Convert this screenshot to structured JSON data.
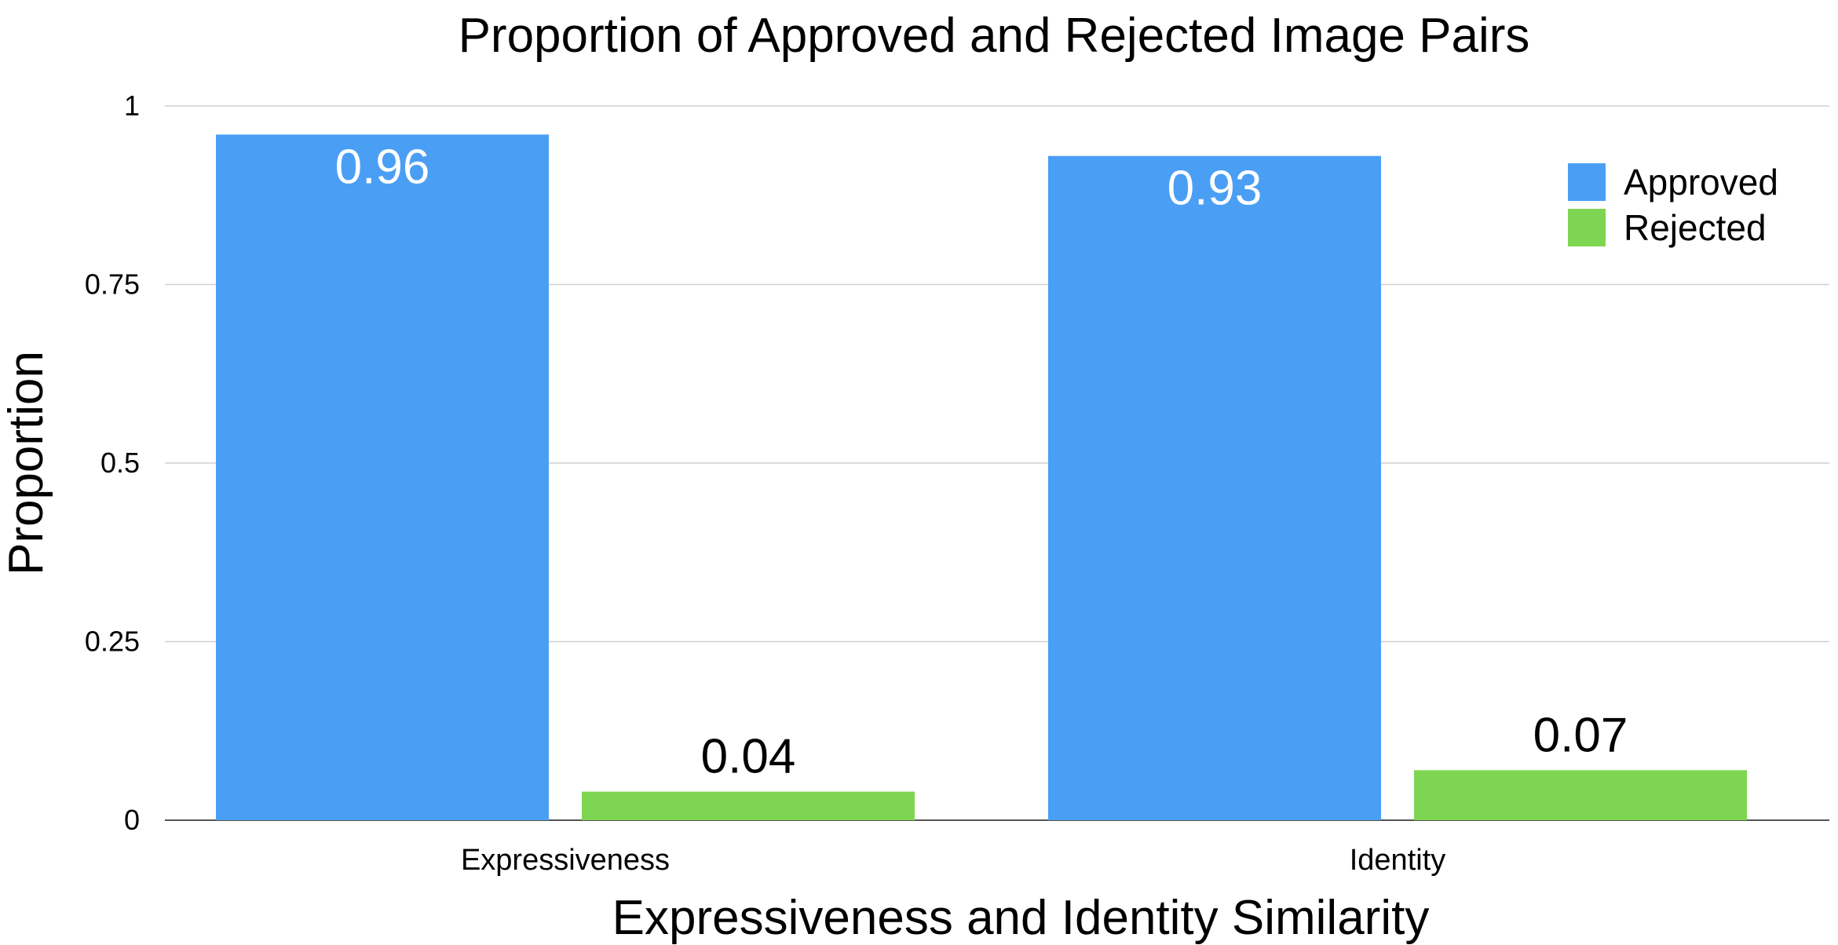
{
  "chart_data": {
    "type": "bar",
    "title": "Proportion of Approved and Rejected Image Pairs",
    "xlabel": "Expressiveness and Identity Similarity",
    "ylabel": "Proportion",
    "categories": [
      "Expressiveness",
      "Identity"
    ],
    "series": [
      {
        "name": "Approved",
        "values": [
          0.96,
          0.93
        ],
        "color": "#4a9ff5"
      },
      {
        "name": "Rejected",
        "values": [
          0.04,
          0.07
        ],
        "color": "#7ed552"
      }
    ],
    "data_labels": [
      [
        "0.96",
        "0.93"
      ],
      [
        "0.04",
        "0.07"
      ]
    ],
    "ylim": [
      0,
      1
    ],
    "yticks": [
      "0",
      "0.25",
      "0.5",
      "0.75",
      "1"
    ],
    "yticks_values": [
      0,
      0.25,
      0.5,
      0.75,
      1
    ],
    "grid": true,
    "legend_position": "top-right"
  }
}
